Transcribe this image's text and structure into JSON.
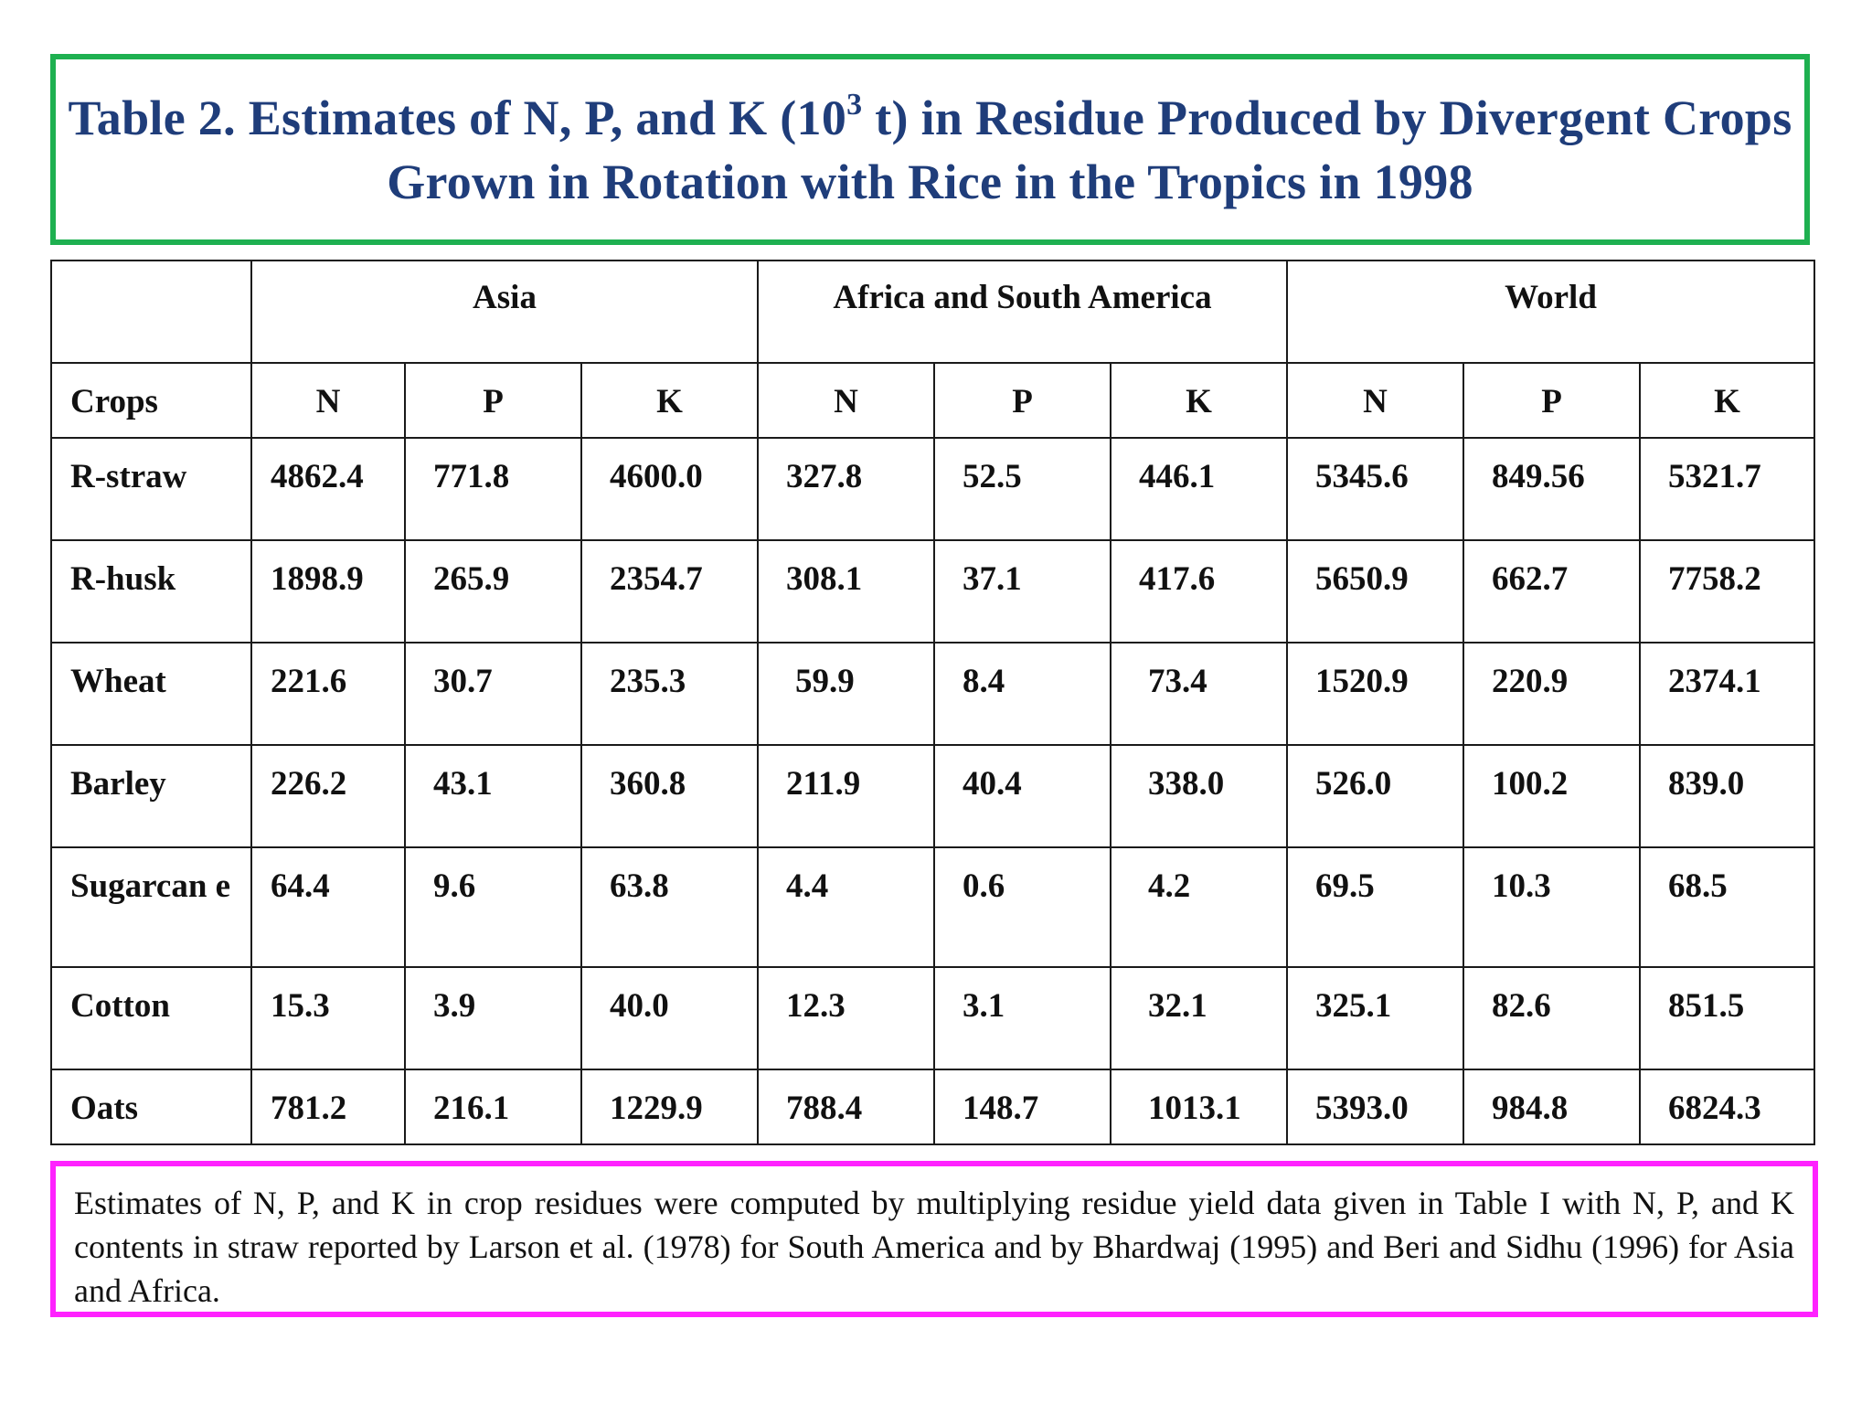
{
  "title": {
    "before_sup": "Table 2. Estimates of N, P, and K (10",
    "sup": "3",
    "after_sup": " t) in Residue Produced by Divergent Crops Grown in Rotation with Rice in the Tropics in 1998"
  },
  "table": {
    "regions": [
      "Asia",
      "Africa and South America",
      "World"
    ],
    "crops_header": "Crops",
    "nutrients": [
      "N",
      "P",
      "K",
      "N",
      "P",
      "K",
      "N",
      "P",
      "K"
    ],
    "rows": [
      {
        "crop": "R-straw",
        "values": [
          "4862.4",
          "771.8",
          "4600.0",
          "327.8",
          "52.5",
          "446.1",
          "5345.6",
          "849.56",
          "5321.7"
        ]
      },
      {
        "crop": "R-husk",
        "values": [
          "1898.9",
          "265.9",
          "2354.7",
          "308.1",
          "37.1",
          "417.6",
          "5650.9",
          "662.7",
          "7758.2"
        ]
      },
      {
        "crop": "Wheat",
        "values": [
          "221.6",
          "30.7",
          "235.3",
          "59.9",
          "8.4",
          "73.4",
          "1520.9",
          "220.9",
          "2374.1"
        ]
      },
      {
        "crop": "Barley",
        "values": [
          "226.2",
          "43.1",
          "360.8",
          "211.9",
          "40.4",
          "338.0",
          "526.0",
          "100.2",
          "839.0"
        ]
      },
      {
        "crop": "Sugarcan e",
        "values": [
          "64.4",
          "9.6",
          "63.8",
          "4.4",
          "0.6",
          "4.2",
          "69.5",
          "10.3",
          "68.5"
        ]
      },
      {
        "crop": "Cotton",
        "values": [
          "15.3",
          "3.9",
          "40.0",
          "12.3",
          "3.1",
          "32.1",
          "325.1",
          "82.6",
          "851.5"
        ]
      },
      {
        "crop": "Oats",
        "values": [
          "781.2",
          "216.1",
          "1229.9",
          "788.4",
          "148.7",
          "1013.1",
          "5393.0",
          "984.8",
          "6824.3"
        ]
      }
    ]
  },
  "note": "Estimates of N, P, and K in crop residues were computed by multiplying residue yield data given in Table I with N, P, and K contents in straw reported by Larson et al. (1978) for South America and by Bhardwaj (1995) and Beri and Sidhu (1996) for Asia and Africa."
}
